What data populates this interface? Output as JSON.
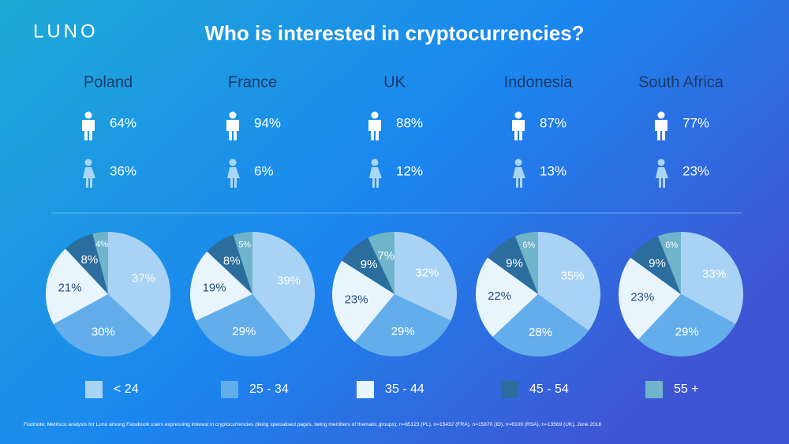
{
  "logo": "LUNO",
  "title": "Who is interested in cryptocurrencies?",
  "footnote": "Footnote: Metrisco analysis for Luno among Facebook users expressing interest in cryptocurrencies (liking specialised pages, being members of thematic groups); n=85123 (PL), n=15432 (FRA), n=15870 (ID), n=8109 (RSA), n=13569 (UK), June 2018",
  "chart_data": [
    {
      "type": "pie",
      "title": "Poland",
      "gender_values": [
        64,
        36
      ],
      "gender_value_labels": [
        "64%",
        "36%"
      ],
      "categories": [
        "< 24",
        "25 - 34",
        "35 - 44",
        "45 - 54",
        "55 +"
      ],
      "colors": [
        "#a8d3f4",
        "#63aeea",
        "#e9f5fd",
        "#2b6d9c",
        "#6fb4cb"
      ],
      "values": [
        37,
        30,
        21,
        8,
        4
      ],
      "value_labels": [
        "37%",
        "30%",
        "21%",
        "8%",
        "4%"
      ]
    },
    {
      "type": "pie",
      "title": "France",
      "gender_values": [
        94,
        6
      ],
      "gender_value_labels": [
        "94%",
        "6%"
      ],
      "categories": [
        "< 24",
        "25 - 34",
        "35 - 44",
        "45 - 54",
        "55 +"
      ],
      "colors": [
        "#a8d3f4",
        "#63aeea",
        "#e9f5fd",
        "#2b6d9c",
        "#6fb4cb"
      ],
      "values": [
        39,
        29,
        19,
        8,
        5
      ],
      "value_labels": [
        "39%",
        "29%",
        "19%",
        "8%",
        "5%"
      ]
    },
    {
      "type": "pie",
      "title": "UK",
      "gender_values": [
        88,
        12
      ],
      "gender_value_labels": [
        "88%",
        "12%"
      ],
      "categories": [
        "< 24",
        "25 - 34",
        "35 - 44",
        "45 - 54",
        "55 +"
      ],
      "colors": [
        "#a8d3f4",
        "#63aeea",
        "#e9f5fd",
        "#2b6d9c",
        "#6fb4cb"
      ],
      "values": [
        32,
        29,
        23,
        9,
        7
      ],
      "value_labels": [
        "32%",
        "29%",
        "23%",
        "9%",
        "7%"
      ]
    },
    {
      "type": "pie",
      "title": "Indonesia",
      "gender_values": [
        87,
        13
      ],
      "gender_value_labels": [
        "87%",
        "13%"
      ],
      "categories": [
        "< 24",
        "25 - 34",
        "35 - 44",
        "45 - 54",
        "55 +"
      ],
      "colors": [
        "#a8d3f4",
        "#63aeea",
        "#e9f5fd",
        "#2b6d9c",
        "#6fb4cb"
      ],
      "values": [
        35,
        28,
        22,
        9,
        6
      ],
      "value_labels": [
        "35%",
        "28%",
        "22%",
        "9%",
        "6%"
      ]
    },
    {
      "type": "pie",
      "title": "South Africa",
      "gender_values": [
        77,
        23
      ],
      "gender_value_labels": [
        "77%",
        "23%"
      ],
      "categories": [
        "< 24",
        "25 - 34",
        "35 - 44",
        "45 - 54",
        "55 +"
      ],
      "colors": [
        "#a8d3f4",
        "#63aeea",
        "#e9f5fd",
        "#2b6d9c",
        "#6fb4cb"
      ],
      "values": [
        33,
        29,
        23,
        9,
        6
      ],
      "value_labels": [
        "33%",
        "29%",
        "23%",
        "9%",
        "6%"
      ]
    }
  ]
}
